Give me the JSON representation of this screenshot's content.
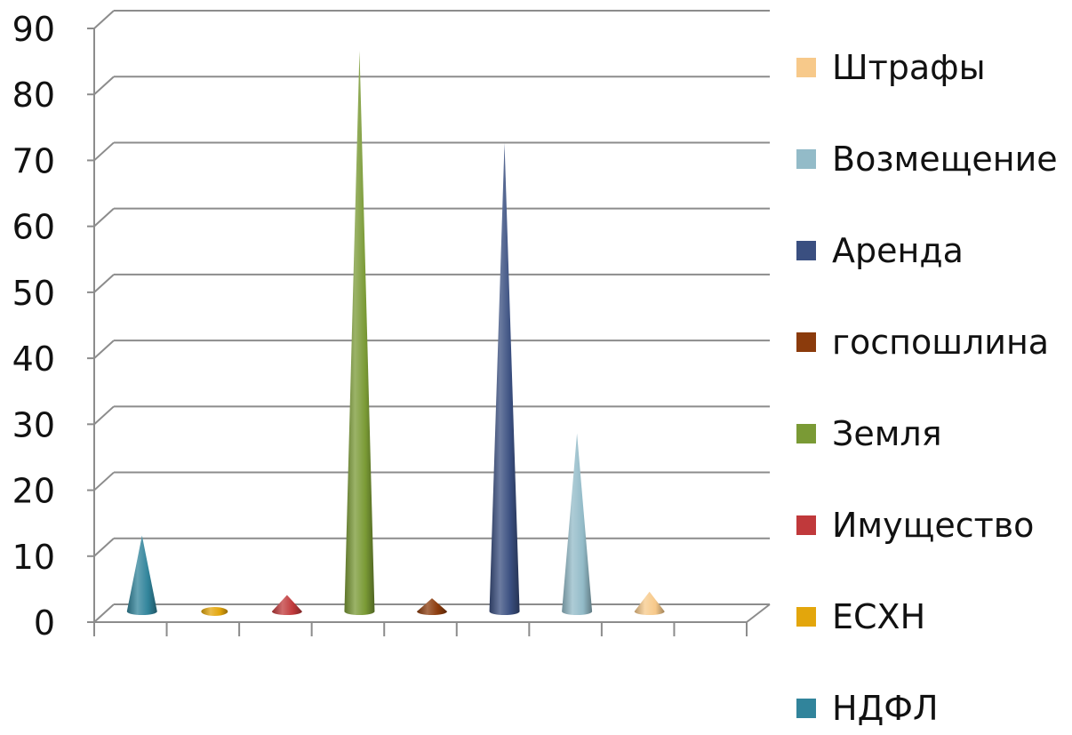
{
  "chart_data": {
    "type": "bar",
    "style": "3d-cone",
    "ylim": [
      0,
      90
    ],
    "yticks": [
      "0",
      "10",
      "20",
      "30",
      "40",
      "50",
      "60",
      "70",
      "80",
      "90"
    ],
    "grid": true,
    "legend_position": "right",
    "series": [
      {
        "name": "НДФЛ",
        "value": 11.5,
        "color": "#31849b"
      },
      {
        "name": "ЕСХН",
        "value": 0.3,
        "color": "#e3a60c"
      },
      {
        "name": "Имущество",
        "value": 2.5,
        "color": "#c0393b"
      },
      {
        "name": "Земля",
        "value": 85,
        "color": "#7a9a35"
      },
      {
        "name": "госпошлина",
        "value": 2.0,
        "color": "#8b3b0c"
      },
      {
        "name": "Аренда",
        "value": 71,
        "color": "#3a4f80"
      },
      {
        "name": "Возмещение",
        "value": 27,
        "color": "#93bbc8"
      },
      {
        "name": "Штрафы",
        "value": 3.0,
        "color": "#f7c98a"
      }
    ]
  }
}
